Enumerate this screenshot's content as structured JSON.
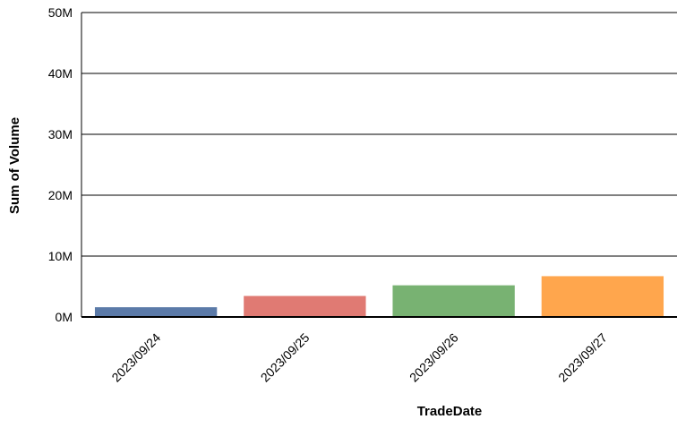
{
  "chart_data": {
    "type": "bar",
    "xlabel": "TradeDate",
    "ylabel": "Sum of Volume",
    "categories": [
      "2023/09/24",
      "2023/09/25",
      "2023/09/26",
      "2023/09/27"
    ],
    "values": [
      1600000,
      3450000,
      5200000,
      6700000
    ],
    "colors": [
      "#5b7aa8",
      "#e07a73",
      "#78b272",
      "#ffa64d"
    ],
    "ylim": [
      0,
      50000000
    ],
    "yticks": [
      {
        "value": 0,
        "label": "0M"
      },
      {
        "value": 10000000,
        "label": "10M"
      },
      {
        "value": 20000000,
        "label": "20M"
      },
      {
        "value": 30000000,
        "label": "30M"
      },
      {
        "value": 40000000,
        "label": "40M"
      },
      {
        "value": 50000000,
        "label": "50M"
      }
    ],
    "grid": true,
    "legend": "none"
  }
}
